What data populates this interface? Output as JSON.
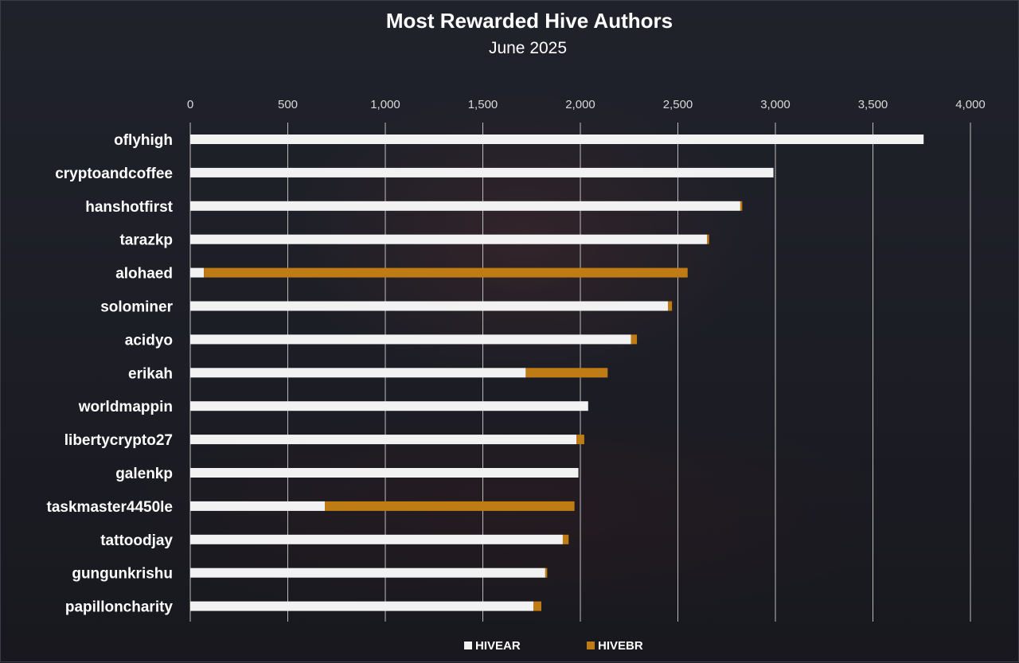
{
  "chart_data": {
    "type": "bar",
    "orientation": "horizontal",
    "stacked": true,
    "title": "Most Rewarded Hive Authors",
    "subtitle": "June 2025",
    "xlim": [
      0,
      4000
    ],
    "x_ticks": [
      0,
      500,
      1000,
      1500,
      2000,
      2500,
      3000,
      3500,
      4000
    ],
    "x_tick_labels": [
      "0",
      "500",
      "1,000",
      "1,500",
      "2,000",
      "2,500",
      "3,000",
      "3,500",
      "4,000"
    ],
    "x_axis_position": "top",
    "grid": true,
    "legend_position": "bottom",
    "categories": [
      "oflyhigh",
      "cryptoandcoffee",
      "hanshotfirst",
      "tarazkp",
      "alohaed",
      "solominer",
      "acidyo",
      "erikah",
      "worldmappin",
      "libertycrypto27",
      "galenkp",
      "taskmaster4450le",
      "tattoodjay",
      "gungunkrishu",
      "papilloncharity"
    ],
    "series": [
      {
        "name": "HIVEAR",
        "color": "#f2f2f2",
        "values": [
          3760,
          2990,
          2820,
          2650,
          70,
          2450,
          2260,
          1720,
          2040,
          1980,
          1990,
          690,
          1910,
          1820,
          1760
        ]
      },
      {
        "name": "HIVEBR",
        "color": "#c07c14",
        "values": [
          0,
          0,
          10,
          10,
          2480,
          20,
          30,
          420,
          0,
          40,
          0,
          1280,
          30,
          10,
          40
        ]
      }
    ]
  }
}
